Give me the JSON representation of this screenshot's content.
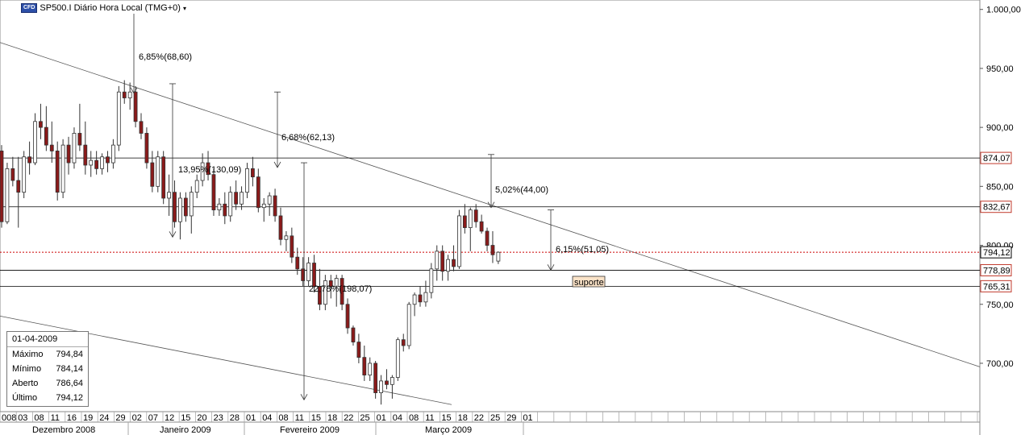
{
  "header": {
    "badge": "CFD",
    "symbol_title": "SP500.I Diário Hora Local (TMG+0)",
    "dropdown_icon": "caret-down-icon"
  },
  "info_box": {
    "date": "01-04-2009",
    "rows": [
      {
        "label": "Máximo",
        "value": "794,84"
      },
      {
        "label": "Mínimo",
        "value": "784,14"
      },
      {
        "label": "Aberto",
        "value": "786,64"
      },
      {
        "label": "Último",
        "value": "794,12"
      }
    ]
  },
  "chart_data": {
    "type": "candlestick",
    "title": "SP500.I Diário Hora Local (TMG+0)",
    "y_ticks": [
      "1.000,00",
      "950,00",
      "900,00",
      "850,00",
      "800,00",
      "750,00",
      "700,00"
    ],
    "y_tick_values": [
      1000,
      950,
      900,
      850,
      800,
      750,
      700
    ],
    "ylim": [
      659,
      1008
    ],
    "price_tags": [
      {
        "label": "874,07",
        "value": 874.07,
        "color": "#c0392b"
      },
      {
        "label": "832,67",
        "value": 832.67,
        "color": "#c0392b"
      },
      {
        "label": "794,12",
        "value": 794.12,
        "color": "#000000"
      },
      {
        "label": "778,89",
        "value": 778.89,
        "color": "#c0392b"
      },
      {
        "label": "765,31",
        "value": 765.31,
        "color": "#c0392b"
      }
    ],
    "horizontal_levels": [
      874.07,
      832.67,
      778.89,
      765.31
    ],
    "current_price_line": 794.12,
    "x_day_labels": [
      "008",
      "03",
      "08",
      "11",
      "16",
      "19",
      "24",
      "29",
      "02",
      "07",
      "12",
      "15",
      "20",
      "23",
      "28",
      "01",
      "04",
      "08",
      "11",
      "15",
      "18",
      "22",
      "25",
      "01",
      "04",
      "08",
      "11",
      "15",
      "18",
      "22",
      "25",
      "29",
      "01"
    ],
    "month_labels": [
      "Dezembro 2008",
      "Janeiro 2009",
      "Fevereiro 2009",
      "Março 2009"
    ],
    "candles": [
      {
        "o": 880,
        "h": 885,
        "l": 815,
        "c": 820
      },
      {
        "o": 820,
        "h": 870,
        "l": 818,
        "c": 865
      },
      {
        "o": 865,
        "h": 875,
        "l": 850,
        "c": 855
      },
      {
        "o": 855,
        "h": 875,
        "l": 815,
        "c": 845
      },
      {
        "o": 845,
        "h": 880,
        "l": 840,
        "c": 875
      },
      {
        "o": 875,
        "h": 888,
        "l": 860,
        "c": 870
      },
      {
        "o": 870,
        "h": 912,
        "l": 868,
        "c": 905
      },
      {
        "o": 905,
        "h": 920,
        "l": 890,
        "c": 900
      },
      {
        "o": 900,
        "h": 918,
        "l": 880,
        "c": 885
      },
      {
        "o": 885,
        "h": 905,
        "l": 870,
        "c": 880
      },
      {
        "o": 880,
        "h": 888,
        "l": 838,
        "c": 845
      },
      {
        "o": 845,
        "h": 890,
        "l": 840,
        "c": 885
      },
      {
        "o": 885,
        "h": 892,
        "l": 860,
        "c": 870
      },
      {
        "o": 870,
        "h": 900,
        "l": 865,
        "c": 895
      },
      {
        "o": 895,
        "h": 920,
        "l": 880,
        "c": 885
      },
      {
        "o": 885,
        "h": 905,
        "l": 860,
        "c": 868
      },
      {
        "o": 868,
        "h": 880,
        "l": 858,
        "c": 872
      },
      {
        "o": 872,
        "h": 880,
        "l": 860,
        "c": 865
      },
      {
        "o": 865,
        "h": 878,
        "l": 860,
        "c": 875
      },
      {
        "o": 875,
        "h": 880,
        "l": 862,
        "c": 870
      },
      {
        "o": 870,
        "h": 890,
        "l": 865,
        "c": 885
      },
      {
        "o": 885,
        "h": 935,
        "l": 880,
        "c": 930
      },
      {
        "o": 930,
        "h": 940,
        "l": 920,
        "c": 925
      },
      {
        "o": 925,
        "h": 938,
        "l": 915,
        "c": 930
      },
      {
        "o": 930,
        "h": 935,
        "l": 900,
        "c": 905
      },
      {
        "o": 905,
        "h": 912,
        "l": 890,
        "c": 895
      },
      {
        "o": 895,
        "h": 900,
        "l": 865,
        "c": 870
      },
      {
        "o": 870,
        "h": 880,
        "l": 845,
        "c": 850
      },
      {
        "o": 850,
        "h": 880,
        "l": 845,
        "c": 875
      },
      {
        "o": 875,
        "h": 880,
        "l": 835,
        "c": 840
      },
      {
        "o": 840,
        "h": 860,
        "l": 825,
        "c": 845
      },
      {
        "o": 845,
        "h": 855,
        "l": 815,
        "c": 820
      },
      {
        "o": 820,
        "h": 845,
        "l": 805,
        "c": 840
      },
      {
        "o": 840,
        "h": 845,
        "l": 820,
        "c": 825
      },
      {
        "o": 825,
        "h": 850,
        "l": 810,
        "c": 845
      },
      {
        "o": 845,
        "h": 860,
        "l": 840,
        "c": 855
      },
      {
        "o": 855,
        "h": 878,
        "l": 850,
        "c": 870
      },
      {
        "o": 870,
        "h": 880,
        "l": 855,
        "c": 860
      },
      {
        "o": 860,
        "h": 865,
        "l": 825,
        "c": 830
      },
      {
        "o": 830,
        "h": 840,
        "l": 825,
        "c": 835
      },
      {
        "o": 835,
        "h": 845,
        "l": 818,
        "c": 825
      },
      {
        "o": 825,
        "h": 850,
        "l": 820,
        "c": 845
      },
      {
        "o": 845,
        "h": 855,
        "l": 830,
        "c": 835
      },
      {
        "o": 835,
        "h": 850,
        "l": 830,
        "c": 845
      },
      {
        "o": 845,
        "h": 870,
        "l": 840,
        "c": 865
      },
      {
        "o": 865,
        "h": 875,
        "l": 850,
        "c": 858
      },
      {
        "o": 858,
        "h": 865,
        "l": 828,
        "c": 832
      },
      {
        "o": 832,
        "h": 840,
        "l": 820,
        "c": 835
      },
      {
        "o": 835,
        "h": 845,
        "l": 825,
        "c": 842
      },
      {
        "o": 842,
        "h": 848,
        "l": 820,
        "c": 825
      },
      {
        "o": 825,
        "h": 832,
        "l": 800,
        "c": 805
      },
      {
        "o": 805,
        "h": 812,
        "l": 795,
        "c": 808
      },
      {
        "o": 808,
        "h": 815,
        "l": 785,
        "c": 790
      },
      {
        "o": 790,
        "h": 798,
        "l": 775,
        "c": 780
      },
      {
        "o": 780,
        "h": 790,
        "l": 765,
        "c": 770
      },
      {
        "o": 770,
        "h": 790,
        "l": 765,
        "c": 785
      },
      {
        "o": 785,
        "h": 792,
        "l": 760,
        "c": 765
      },
      {
        "o": 765,
        "h": 780,
        "l": 745,
        "c": 750
      },
      {
        "o": 750,
        "h": 775,
        "l": 745,
        "c": 770
      },
      {
        "o": 770,
        "h": 775,
        "l": 755,
        "c": 765
      },
      {
        "o": 765,
        "h": 775,
        "l": 748,
        "c": 772
      },
      {
        "o": 772,
        "h": 775,
        "l": 745,
        "c": 750
      },
      {
        "o": 750,
        "h": 755,
        "l": 725,
        "c": 730
      },
      {
        "o": 730,
        "h": 732,
        "l": 715,
        "c": 718
      },
      {
        "o": 718,
        "h": 725,
        "l": 700,
        "c": 705
      },
      {
        "o": 705,
        "h": 715,
        "l": 685,
        "c": 690
      },
      {
        "o": 690,
        "h": 705,
        "l": 685,
        "c": 700
      },
      {
        "o": 700,
        "h": 702,
        "l": 670,
        "c": 675
      },
      {
        "o": 675,
        "h": 690,
        "l": 665,
        "c": 685
      },
      {
        "o": 685,
        "h": 695,
        "l": 678,
        "c": 682
      },
      {
        "o": 682,
        "h": 690,
        "l": 670,
        "c": 688
      },
      {
        "o": 688,
        "h": 722,
        "l": 685,
        "c": 720
      },
      {
        "o": 720,
        "h": 725,
        "l": 710,
        "c": 715
      },
      {
        "o": 715,
        "h": 752,
        "l": 712,
        "c": 750
      },
      {
        "o": 750,
        "h": 760,
        "l": 740,
        "c": 758
      },
      {
        "o": 758,
        "h": 765,
        "l": 748,
        "c": 752
      },
      {
        "o": 752,
        "h": 770,
        "l": 748,
        "c": 760
      },
      {
        "o": 760,
        "h": 785,
        "l": 755,
        "c": 780
      },
      {
        "o": 780,
        "h": 800,
        "l": 770,
        "c": 795
      },
      {
        "o": 795,
        "h": 800,
        "l": 770,
        "c": 778
      },
      {
        "o": 778,
        "h": 792,
        "l": 770,
        "c": 788
      },
      {
        "o": 788,
        "h": 800,
        "l": 778,
        "c": 782
      },
      {
        "o": 782,
        "h": 830,
        "l": 780,
        "c": 825
      },
      {
        "o": 825,
        "h": 835,
        "l": 810,
        "c": 815
      },
      {
        "o": 815,
        "h": 832,
        "l": 795,
        "c": 830
      },
      {
        "o": 830,
        "h": 835,
        "l": 815,
        "c": 820
      },
      {
        "o": 820,
        "h": 826,
        "l": 810,
        "c": 812
      },
      {
        "o": 812,
        "h": 815,
        "l": 795,
        "c": 800
      },
      {
        "o": 800,
        "h": 812,
        "l": 785,
        "c": 792
      },
      {
        "o": 786.64,
        "h": 794.84,
        "l": 784.14,
        "c": 794.12
      }
    ],
    "trendlines": [
      {
        "from": [
          0,
          972
        ],
        "to": [
          1,
          697
        ],
        "label": "downtrend-top"
      },
      {
        "from": [
          0,
          740
        ],
        "to": [
          1,
          665
        ],
        "label": "downtrend-bottom"
      }
    ],
    "annotations": [
      {
        "text": "6,85%(68,60)"
      },
      {
        "text": "6,68%(62,13)"
      },
      {
        "text": "13,95%(130,09)"
      },
      {
        "text": "22,78%(198,07)"
      },
      {
        "text": "5,02%(44,00)"
      },
      {
        "text": "6,15%(51,05)"
      },
      {
        "text": "suporte"
      }
    ],
    "grid": false
  }
}
